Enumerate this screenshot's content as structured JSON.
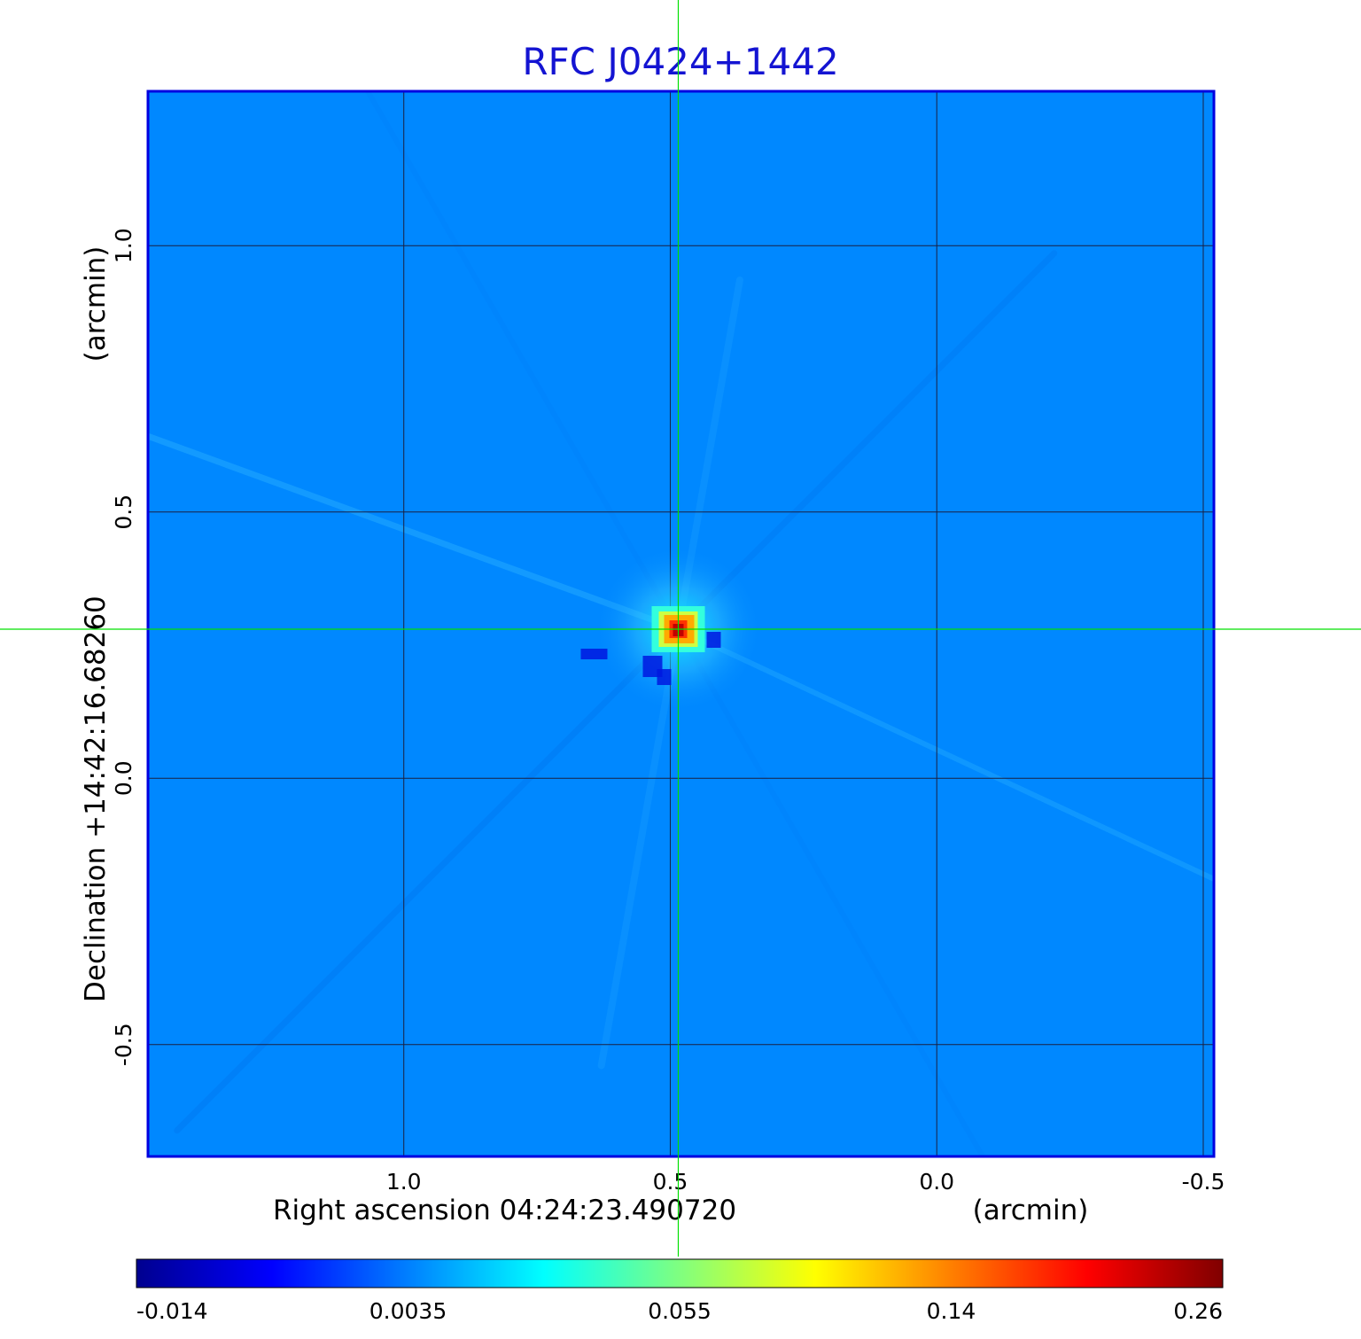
{
  "chart_data": {
    "type": "heatmap",
    "title": "RFC J0424+1442",
    "xlabel": {
      "text": "Right ascension  04:24:23.490720",
      "unit": "(arcmin)"
    },
    "ylabel": {
      "text": "Declination  +14:42:16.68260",
      "unit": "(arcmin)"
    },
    "x_ticks": [
      "1.0",
      "0.5",
      "0.0",
      "-0.5"
    ],
    "x_tick_values": [
      1.0,
      0.5,
      0.0,
      -0.5
    ],
    "y_ticks": [
      "1.0",
      "0.5",
      "0.0",
      "-0.5"
    ],
    "y_tick_values": [
      1.0,
      0.5,
      0.0,
      -0.5
    ],
    "xlim": [
      1.48,
      -0.52
    ],
    "ylim": [
      -0.71,
      1.29
    ],
    "x_inverted": true,
    "grid": true,
    "crosshair": {
      "x": 0.485,
      "y": 0.28,
      "color": "#00e000"
    },
    "colormap": "jet",
    "colorbar": {
      "orientation": "horizontal",
      "position": "bottom",
      "tick_labels": [
        "-0.014",
        "0.0035",
        "0.055",
        "0.14",
        "0.26"
      ],
      "range": [
        -0.014,
        0.26
      ]
    },
    "background_value": 0.0,
    "source": {
      "x": 0.485,
      "y": 0.28,
      "peak": 0.26
    },
    "colors": {
      "title": "#1414d2",
      "frame": "#0000e0",
      "background": "#0088ff",
      "grid": "#1a2040"
    }
  }
}
